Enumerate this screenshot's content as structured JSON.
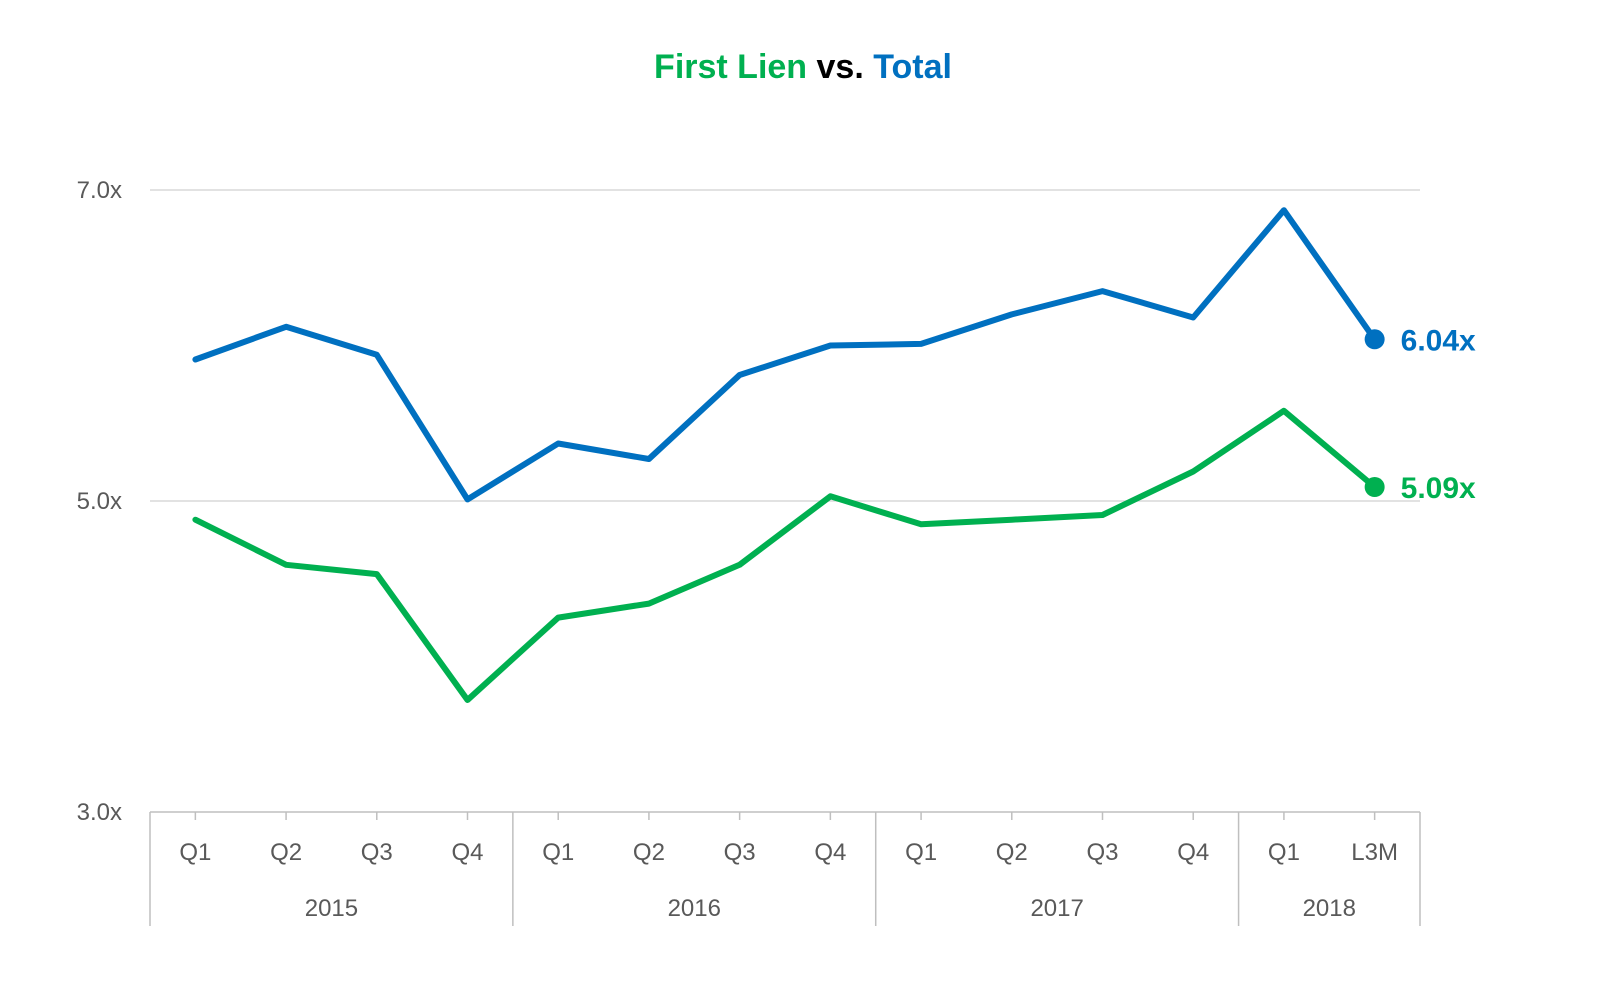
{
  "chart_data": {
    "type": "line",
    "title_parts": [
      {
        "text": "First Lien",
        "color": "#00B050"
      },
      {
        "text": " vs. ",
        "color": "#000000"
      },
      {
        "text": "Total",
        "color": "#0070C0"
      }
    ],
    "y_ticks": [
      "7.0x",
      "5.0x",
      "3.0x"
    ],
    "y_tick_values": [
      7.0,
      5.0,
      3.0
    ],
    "ylim": [
      3.0,
      7.0
    ],
    "grid": true,
    "categories": [
      "Q1",
      "Q2",
      "Q3",
      "Q4",
      "Q1",
      "Q2",
      "Q3",
      "Q4",
      "Q1",
      "Q2",
      "Q3",
      "Q4",
      "Q1",
      "L3M"
    ],
    "groups": [
      {
        "label": "2015",
        "count": 4
      },
      {
        "label": "2016",
        "count": 4
      },
      {
        "label": "2017",
        "count": 4
      },
      {
        "label": "2018",
        "count": 2
      }
    ],
    "series": [
      {
        "name": "Total",
        "color": "#0070C0",
        "values": [
          5.91,
          6.12,
          5.94,
          5.01,
          5.37,
          5.27,
          5.81,
          6.0,
          6.01,
          6.2,
          6.35,
          6.18,
          6.87,
          6.04
        ],
        "end_label": "6.04x"
      },
      {
        "name": "First Lien",
        "color": "#00B050",
        "values": [
          4.88,
          4.59,
          4.53,
          3.72,
          4.25,
          4.34,
          4.59,
          5.03,
          4.85,
          4.88,
          4.91,
          5.19,
          5.58,
          5.09
        ],
        "end_label": "5.09x"
      }
    ]
  }
}
